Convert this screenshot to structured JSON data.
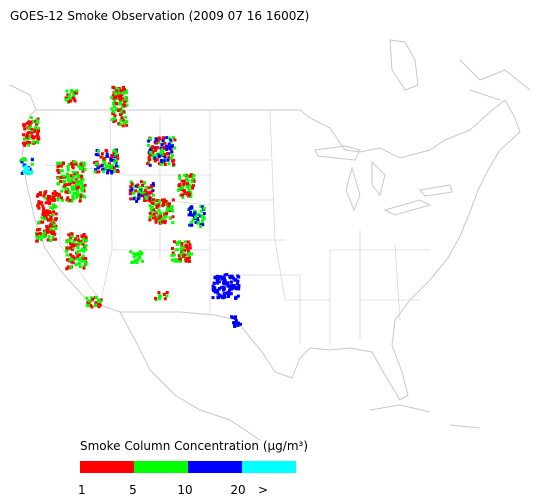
{
  "title": "GOES-12 Smoke Observation (2009 07 16  1600Z)",
  "legend": {
    "title": "Smoke Column Concentration (μg/m³)",
    "colors": [
      "#ff0000",
      "#00ff00",
      "#0000ff",
      "#00ffff"
    ],
    "ticks": [
      "1",
      "5",
      "10",
      "20",
      ">"
    ]
  }
}
